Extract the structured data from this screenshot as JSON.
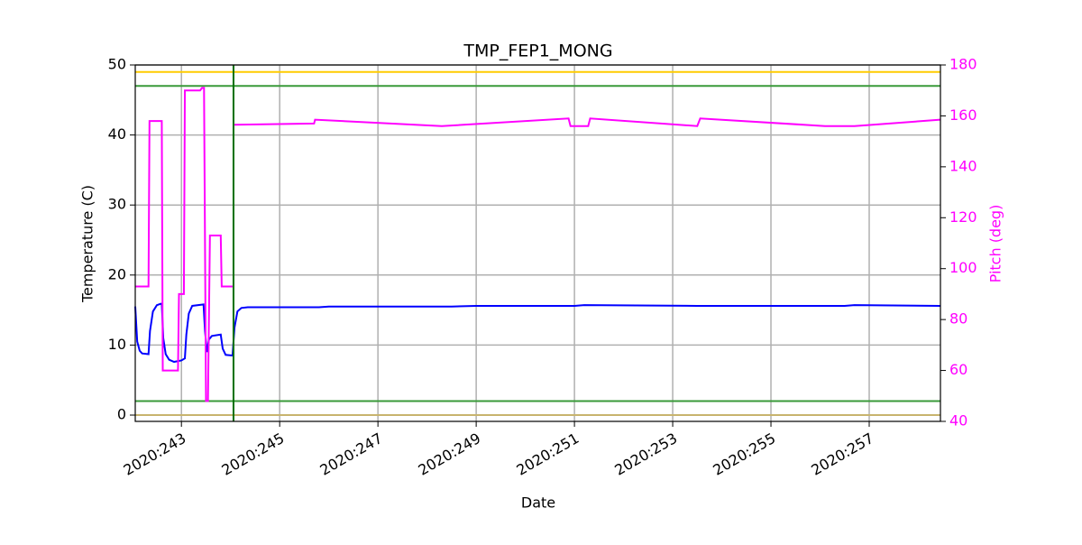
{
  "chart_data": {
    "type": "line",
    "title": "TMP_FEP1_MONG",
    "xlabel": "Date",
    "ylabel": "Temperature (C)",
    "y2label": "Pitch (deg)",
    "grid": true,
    "xlim": [
      242.06,
      258.45
    ],
    "ylim": [
      -0.9,
      50
    ],
    "y2lim": [
      40,
      180
    ],
    "xticks": [
      {
        "value": 243,
        "label": "2020:243"
      },
      {
        "value": 245,
        "label": "2020:245"
      },
      {
        "value": 247,
        "label": "2020:247"
      },
      {
        "value": 249,
        "label": "2020:249"
      },
      {
        "value": 251,
        "label": "2020:251"
      },
      {
        "value": 253,
        "label": "2020:253"
      },
      {
        "value": 255,
        "label": "2020:255"
      },
      {
        "value": 257,
        "label": "2020:257"
      }
    ],
    "yticks": [
      0,
      10,
      20,
      30,
      40,
      50
    ],
    "y2ticks": [
      40,
      60,
      80,
      100,
      120,
      140,
      160,
      180
    ],
    "hlines": [
      {
        "value": 49,
        "color": "#ffcc00"
      },
      {
        "value": 47,
        "color": "#3a9a3a"
      },
      {
        "value": 2,
        "color": "#3a9a3a"
      },
      {
        "value": 0,
        "color": "#c8b46e"
      }
    ],
    "vlines": [
      {
        "value": 244.06,
        "color": "#007000"
      }
    ],
    "series": [
      {
        "color": "#0000ff",
        "x": [
          242.06,
          242.1,
          242.15,
          242.2,
          242.33,
          242.36,
          242.42,
          242.5,
          242.58,
          242.6,
          242.63,
          242.68,
          242.75,
          242.85,
          243.0,
          243.07,
          243.1,
          243.15,
          243.22,
          243.45,
          243.48,
          243.52,
          243.56,
          243.62,
          243.8,
          243.84,
          243.9,
          244.04,
          244.08,
          244.14,
          244.22,
          244.35,
          245.8,
          246,
          248.5,
          249,
          251,
          251.2,
          253.5,
          254,
          256.5,
          256.7,
          258.45
        ],
        "values": [
          15.5,
          10.5,
          9.2,
          8.8,
          8.7,
          12,
          14.8,
          15.7,
          15.9,
          15.9,
          11,
          8.7,
          7.9,
          7.6,
          7.8,
          8.1,
          11.5,
          14.5,
          15.6,
          15.8,
          12,
          9,
          10.8,
          11.3,
          11.5,
          9.5,
          8.6,
          8.5,
          12.5,
          14.8,
          15.3,
          15.4,
          15.4,
          15.5,
          15.5,
          15.6,
          15.6,
          15.7,
          15.6,
          15.6,
          15.6,
          15.7,
          15.6
        ]
      },
      {
        "color": "#ff00ff",
        "axis": "y2",
        "x": [
          242.06,
          242.33,
          242.35,
          242.6,
          242.62,
          242.93,
          242.95,
          243.05,
          243.07,
          243.38,
          243.42,
          243.46,
          243.5,
          243.54,
          243.58,
          243.8,
          243.82,
          244.04,
          244.06,
          244.08,
          245.7,
          245.72,
          248.3,
          250.88,
          250.92,
          251.28,
          251.32,
          253.5,
          253.56,
          256.1,
          256.7,
          258.45
        ],
        "values": [
          93,
          93,
          158,
          158,
          60,
          60,
          90,
          90,
          170,
          170,
          171,
          171,
          48,
          48,
          113,
          113,
          93,
          93,
          null,
          156.5,
          157,
          158.5,
          156,
          159,
          156,
          156,
          159,
          156,
          159,
          156,
          156,
          158.5
        ]
      }
    ]
  }
}
